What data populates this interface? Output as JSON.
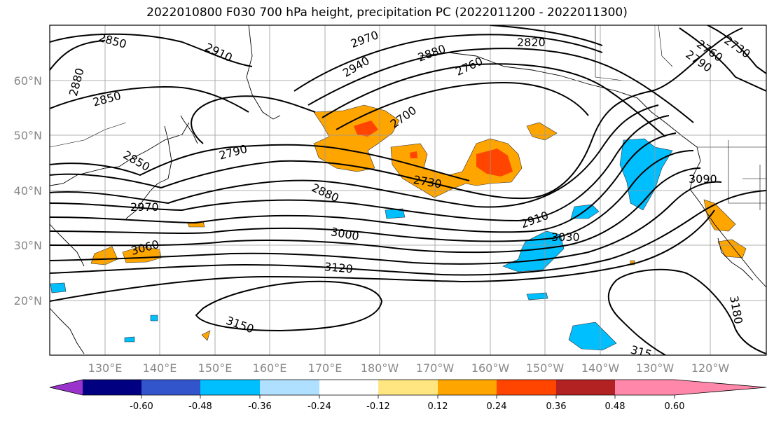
{
  "title": "2022010800 F030 700 hPa height, precipitation PC (2022011200 - 2022011300)",
  "map": {
    "lat_labels": [
      "60°N",
      "50°N",
      "40°N",
      "30°N",
      "20°N"
    ],
    "lon_labels": [
      "130°E",
      "140°E",
      "150°E",
      "160°E",
      "170°E",
      "180°W",
      "170°W",
      "160°W",
      "150°W",
      "140°W",
      "130°W",
      "120°W"
    ],
    "contour_labels": [
      "2850",
      "2910",
      "2970",
      "2940",
      "2880",
      "2820",
      "2760",
      "2730",
      "2790",
      "2700",
      "2760",
      "2850",
      "2880",
      "2790",
      "2850",
      "2970",
      "3060",
      "2730",
      "2880",
      "3000",
      "2910",
      "3030",
      "3090",
      "3120",
      "3150",
      "3180",
      "315"
    ]
  },
  "colorbar": {
    "colors": [
      "#9933cc",
      "#000080",
      "#3355cc",
      "#00bfff",
      "#b0e0ff",
      "#ffffff",
      "#ffe680",
      "#ffa500",
      "#ff4500",
      "#b22222",
      "#ff88aa"
    ],
    "tick_labels": [
      "-0.60",
      "-0.48",
      "-0.36",
      "-0.24",
      "-0.12",
      "0.12",
      "0.24",
      "0.36",
      "0.48",
      "0.60"
    ]
  },
  "colors": {
    "positive": "#ffa500",
    "strong_positive": "#ff4500",
    "negative": "#00bfff",
    "grid": "#999999"
  }
}
